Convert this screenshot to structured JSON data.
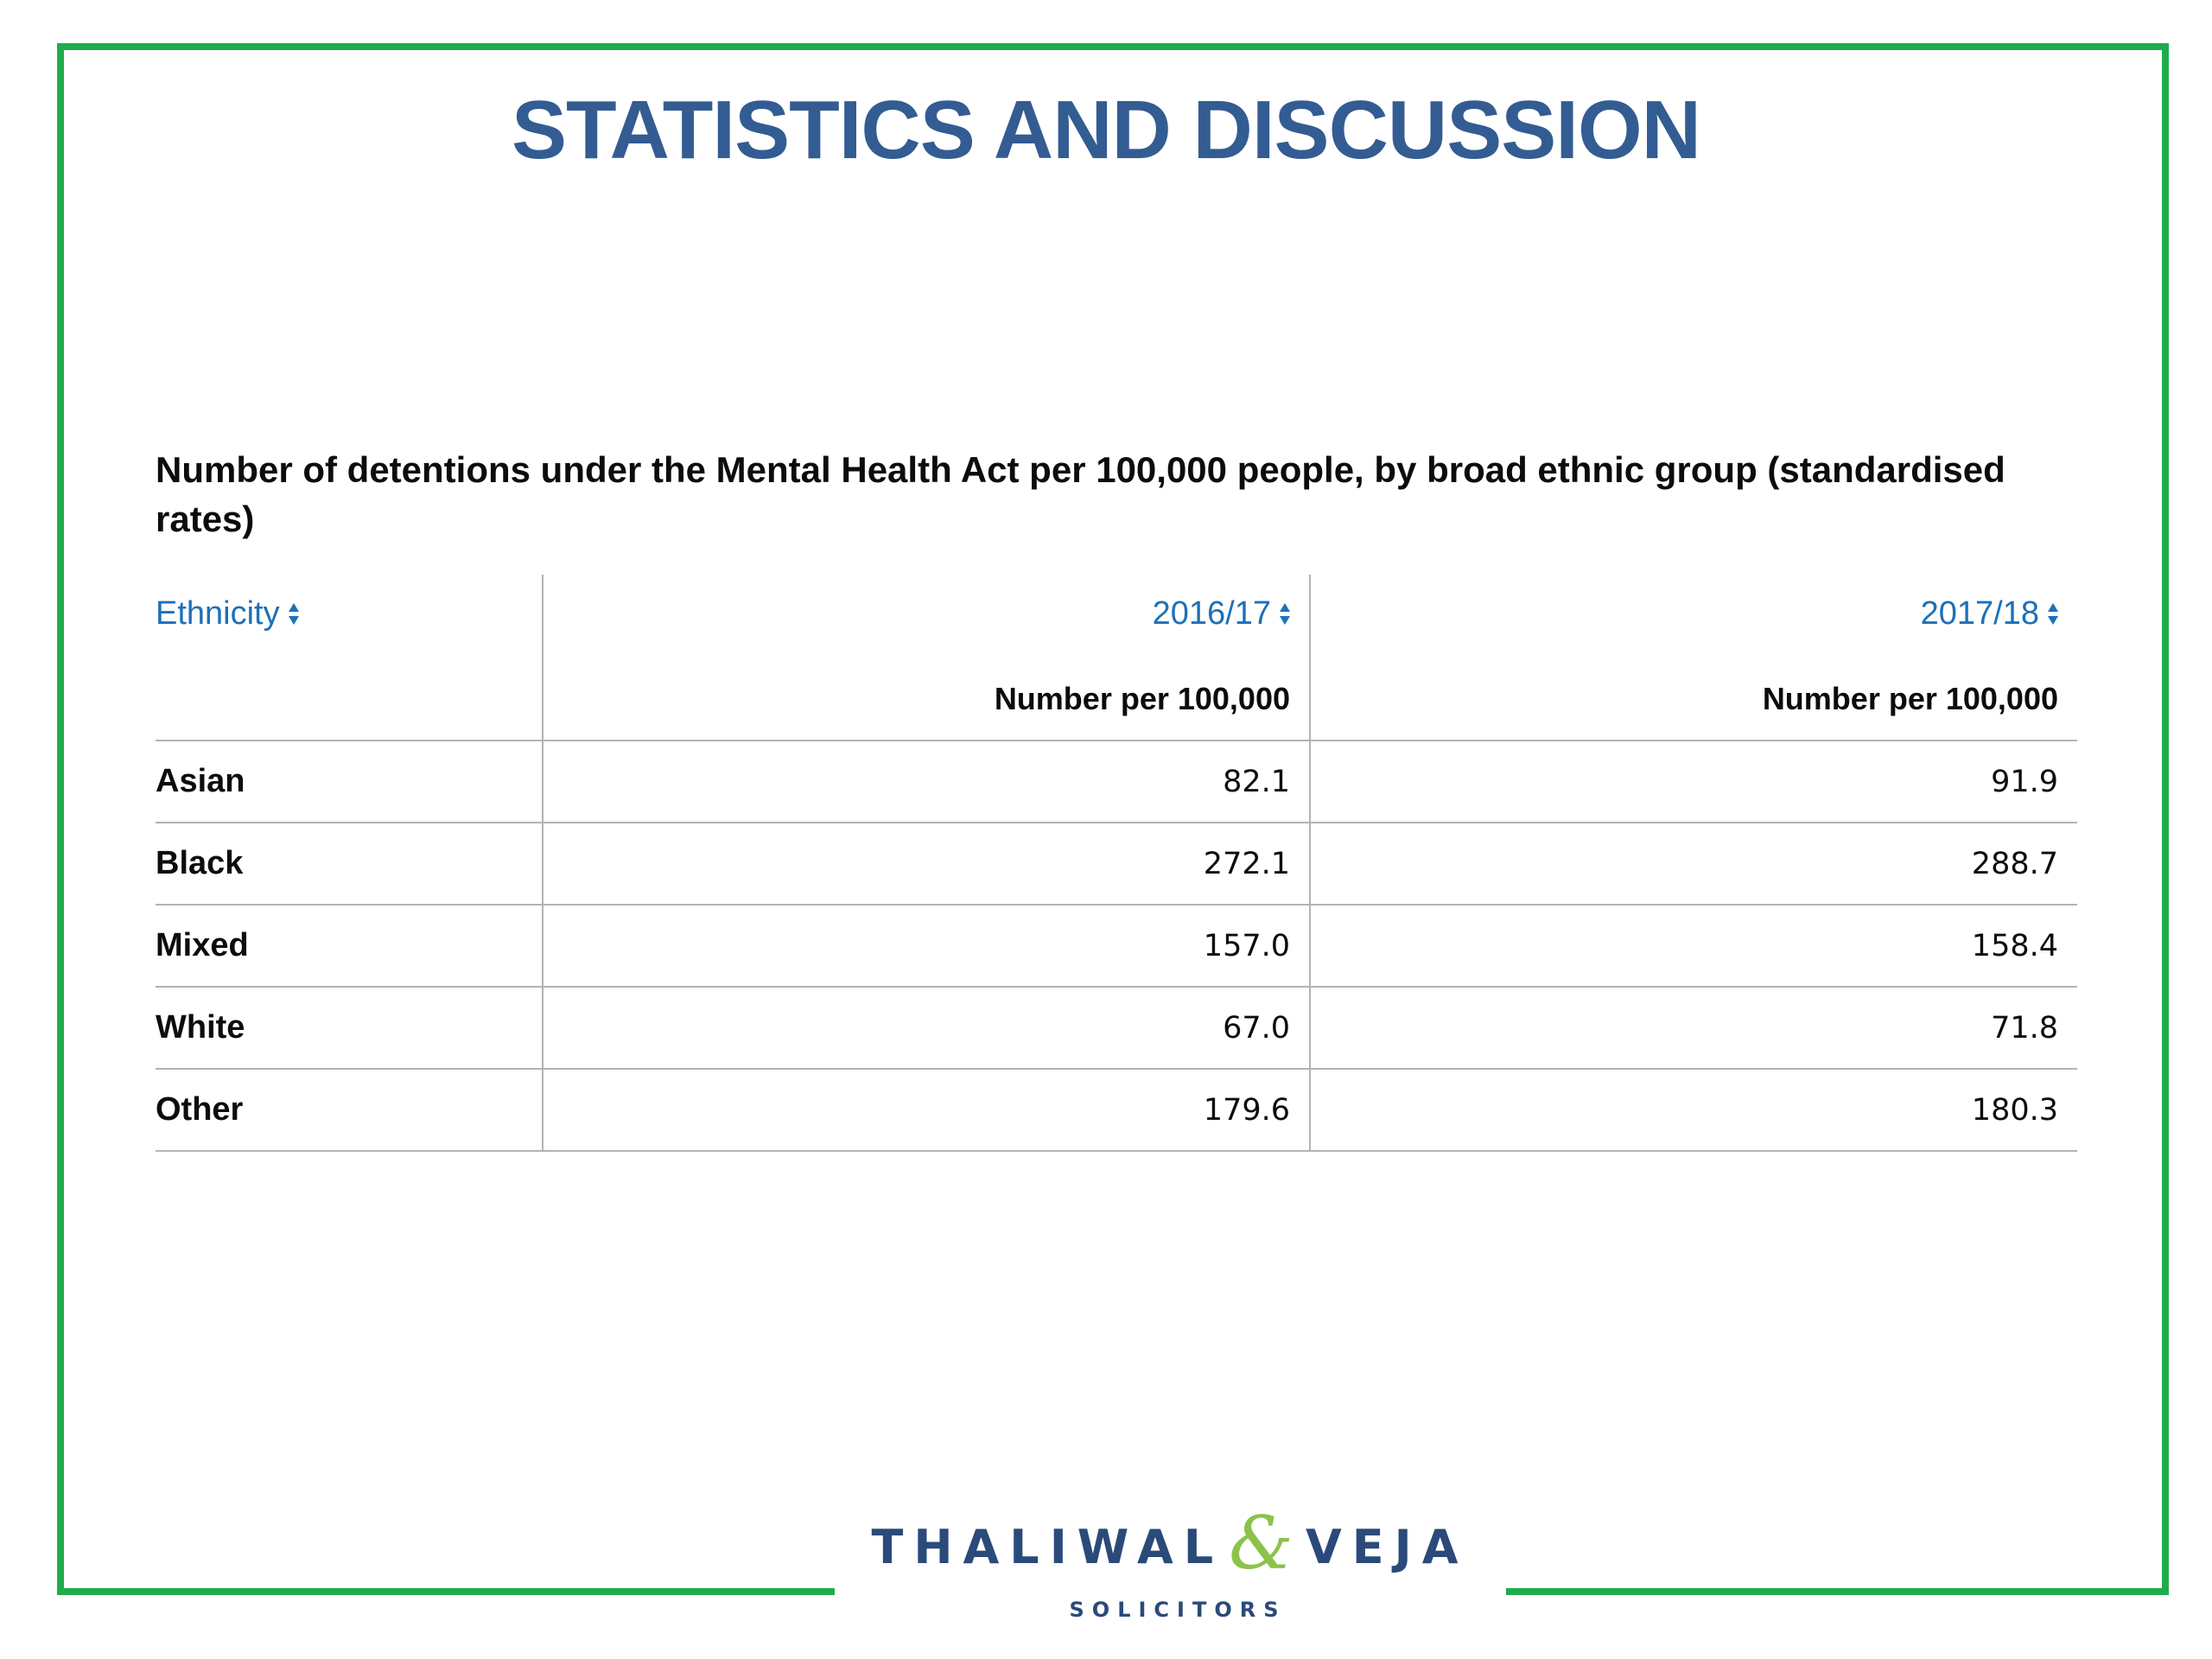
{
  "slide": {
    "title": "STATISTICS AND DISCUSSION",
    "frame_color": "#1fac4b",
    "title_color": "#335c92"
  },
  "table": {
    "caption": "Number of detentions under the Mental Health Act per 100,000 people, by broad ethnic group (standardised rates)",
    "link_color": "#1d70b8",
    "columns": [
      {
        "label": "Ethnicity",
        "sort_icon": "sort-updown-icon",
        "unit": ""
      },
      {
        "label": "2016/17",
        "sort_icon": "sort-updown-icon",
        "unit": "Number per 100,000"
      },
      {
        "label": "2017/18",
        "sort_icon": "sort-updown-icon",
        "unit": "Number per 100,000"
      }
    ],
    "rows": [
      {
        "ethnicity": "Asian",
        "v2016": "82.1",
        "v2017": "91.9"
      },
      {
        "ethnicity": "Black",
        "v2016": "272.1",
        "v2017": "288.7"
      },
      {
        "ethnicity": "Mixed",
        "v2016": "157.0",
        "v2017": "158.4"
      },
      {
        "ethnicity": "White",
        "v2016": "67.0",
        "v2017": "71.8"
      },
      {
        "ethnicity": "Other",
        "v2016": "179.6",
        "v2017": "180.3"
      }
    ]
  },
  "logo": {
    "name_left": "THALIWAL",
    "ampersand": "&",
    "name_right": "VEJA",
    "subtitle": "SOLICITORS",
    "primary_color": "#2a4a7a",
    "accent_color": "#8bc34a"
  }
}
